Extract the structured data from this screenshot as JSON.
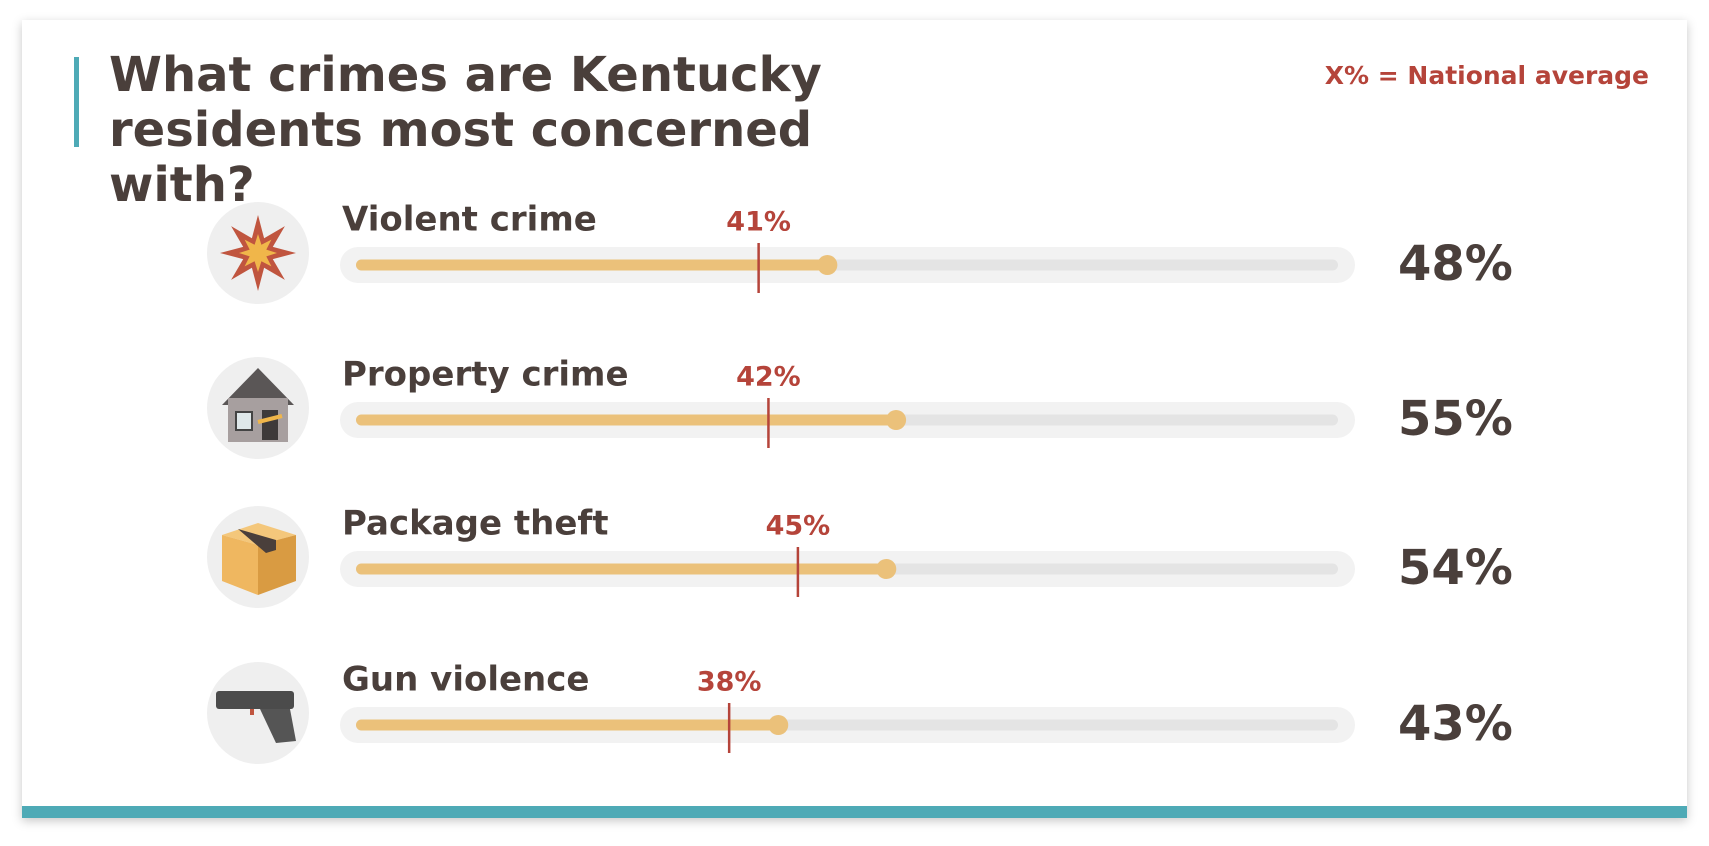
{
  "chart_data": {
    "type": "bar",
    "title": "What crimes are Kentucky residents most concerned with?",
    "categories": [
      "Violent crime",
      "Property crime",
      "Package theft",
      "Gun violence"
    ],
    "values": [
      48,
      55,
      54,
      43
    ],
    "value_labels": [
      "48%",
      "55%",
      "54%",
      "43%"
    ],
    "color": "#ebc17a",
    "xlim": [
      0,
      100
    ],
    "national_average": {
      "label": "X% = National average",
      "values": [
        41,
        42,
        45,
        38
      ],
      "value_labels": [
        "41%",
        "42%",
        "45%",
        "38%"
      ],
      "color": "#b5443a"
    }
  }
}
